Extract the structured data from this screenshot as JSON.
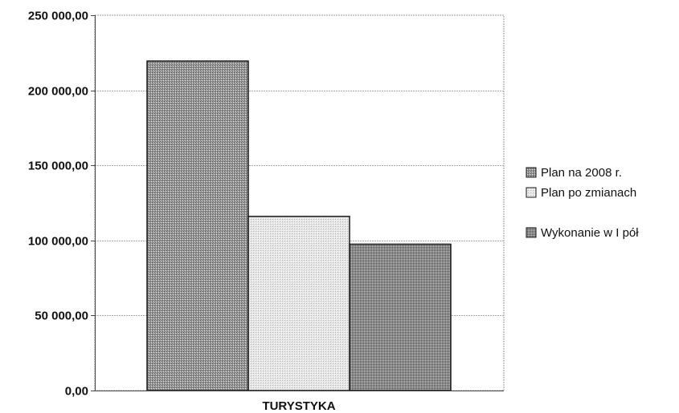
{
  "chart_data": {
    "type": "bar",
    "title": "",
    "xlabel": "",
    "ylabel": "",
    "categories": [
      "TURYSTYKA"
    ],
    "series": [
      {
        "name": "Plan na 2008 r.",
        "values": [
          219500
        ],
        "color": "#8c8c8c"
      },
      {
        "name": "Plan po zmianach",
        "values": [
          116000
        ],
        "color": "#d9d9d9"
      },
      {
        "name": "Wykonanie w I pół",
        "values": [
          97500
        ],
        "color": "#8a8a8a"
      }
    ],
    "ylim": [
      0,
      250000
    ],
    "yticks": [
      0,
      50000,
      100000,
      150000,
      200000,
      250000
    ],
    "ytick_labels": [
      "0,00",
      "50 000,00",
      "100 000,00",
      "150 000,00",
      "200 000,00",
      "250 000,00"
    ],
    "grid": true,
    "legend_position": "right"
  }
}
